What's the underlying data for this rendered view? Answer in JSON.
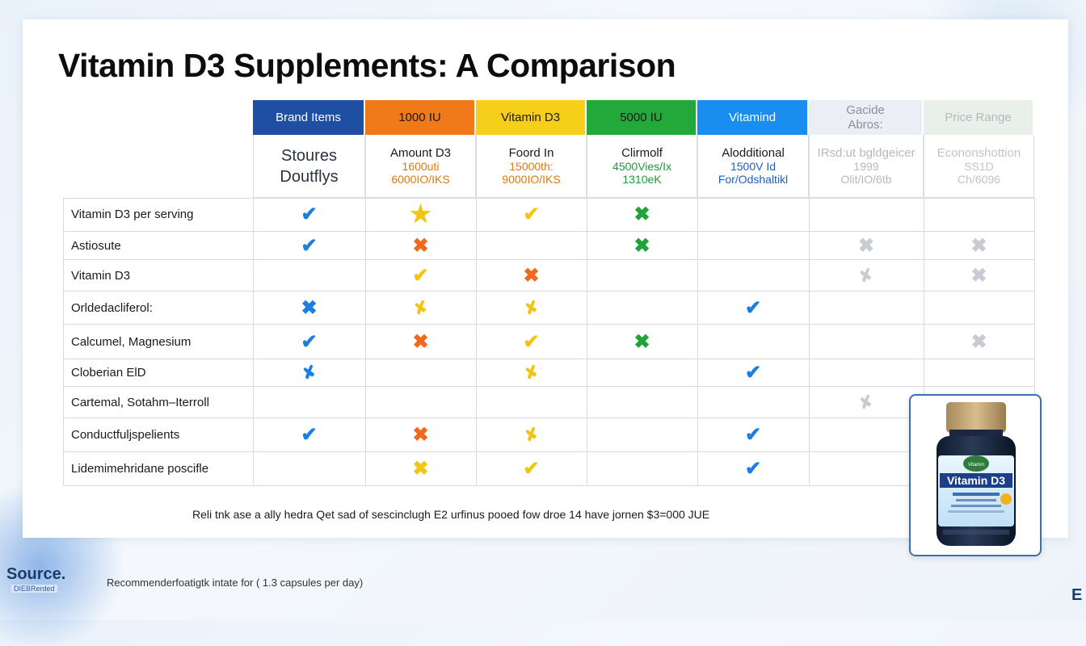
{
  "title": "Vitamin D3 Supplements: A Comparison",
  "columns": [
    {
      "header": "Brand Items",
      "header_bg": "#1f4fa3",
      "header_color": "#ffffff",
      "sub_line1": "Stoures\nDoutflys",
      "sub_line2": "",
      "sub_line3": "",
      "sub_color": "#1a1a1a"
    },
    {
      "header": "1000 IU",
      "header_bg": "#f07a1a",
      "header_color": "#1a1a1a",
      "sub_line1": "Amount D3",
      "sub_line2": "1600uti",
      "sub_line3": "6000IO/IKS",
      "sub_color": "#e07a10"
    },
    {
      "header": "Vitamin D3",
      "header_bg": "#f6cf1a",
      "header_color": "#1a1a1a",
      "sub_line1": "Foord In",
      "sub_line2": "15000th:",
      "sub_line3": "9000IO/IKS",
      "sub_color": "#e07a10"
    },
    {
      "header": "5000 IU",
      "header_bg": "#22a93a",
      "header_color": "#1a1a1a",
      "sub_line1": "Clirmolf",
      "sub_line2": "4500Vies/Ix",
      "sub_line3": "1310eK",
      "sub_color": "#1f9a38"
    },
    {
      "header": "Vitamind",
      "header_bg": "#1a8ef0",
      "header_color": "#ffffff",
      "sub_line1": "Alodditional",
      "sub_line2": "1500V Id",
      "sub_line3": "For/Odshaltikl",
      "sub_color": "#1f5fbf"
    },
    {
      "header": "Gacide\nAbros:",
      "header_bg": "#eceef6",
      "header_color": "#8a8f99",
      "sub_line1": "IRsd:ut bgldgeicer",
      "sub_line2": "1999",
      "sub_line3": "Olit/IO/6tb",
      "sub_color": "#b4b9c2"
    },
    {
      "header": "Price Range",
      "header_bg": "#e9f0ea",
      "header_color": "#b4b9bf",
      "sub_line1": "Econonshottion",
      "sub_line2": "SS1D",
      "sub_line3": "Ch/6096",
      "sub_color": "#c0c4ca"
    }
  ],
  "rows": [
    {
      "label": "Vitamin D3 per serving",
      "marks": [
        "check-blue",
        "star-yellow",
        "check-yellow",
        "cross-green",
        "",
        "",
        ""
      ]
    },
    {
      "label": "Astiosute",
      "marks": [
        "check-blue",
        "cross-orange",
        "",
        "cross-green",
        "",
        "cross-gray",
        "cross-gray"
      ]
    },
    {
      "label": "Vitamin D3",
      "marks": [
        "",
        "check-yellow",
        "cross-orange",
        "",
        "",
        "squiggle-gray",
        "cross-gray"
      ]
    },
    {
      "label": "Orldedacliferol:",
      "marks": [
        "cross-blue",
        "squiggle-yellow",
        "squiggle-yellow",
        "",
        "check-blue",
        "",
        ""
      ]
    },
    {
      "label": "Calcumel, Magnesium",
      "marks": [
        "check-blue",
        "cross-orange",
        "check-yellow",
        "cross-green",
        "",
        "",
        "cross-gray"
      ]
    },
    {
      "label": "Cloberian ElD",
      "marks": [
        "squiggle-blue",
        "",
        "squiggle-yellow",
        "",
        "check-blue",
        "",
        ""
      ]
    },
    {
      "label": "Cartemal, Sotahm–Iterroll",
      "marks": [
        "",
        "",
        "",
        "",
        "",
        "squiggle-gray",
        ""
      ]
    },
    {
      "label": "Conductfuljspelients",
      "marks": [
        "check-blue",
        "cross-orange",
        "squiggle-yellow",
        "",
        "check-blue",
        "",
        ""
      ]
    },
    {
      "label": "Lidemimehridane poscifle",
      "marks": [
        "",
        "cross-yellow",
        "check-yellow",
        "",
        "check-blue",
        "",
        ""
      ]
    }
  ],
  "note": "Reli tnk ase a ally hedra Qet sad of sescinclugh E2 urfinus pooed fow droe 14 have jornen $3=000 JUE",
  "footnote": "Recommenderfoatigtk intate for ( 1.3 capsules per day)",
  "source_label": "Source.",
  "source_sub": "DIEBRerded",
  "bottle": {
    "brand_line": "Vitamin D3",
    "badge": "Vitamin"
  },
  "colors": {
    "blue": "#1a7fe0",
    "orange": "#f06a1c",
    "yellow": "#f2c414",
    "green": "#20a43a",
    "gray": "#c8ccd2"
  }
}
